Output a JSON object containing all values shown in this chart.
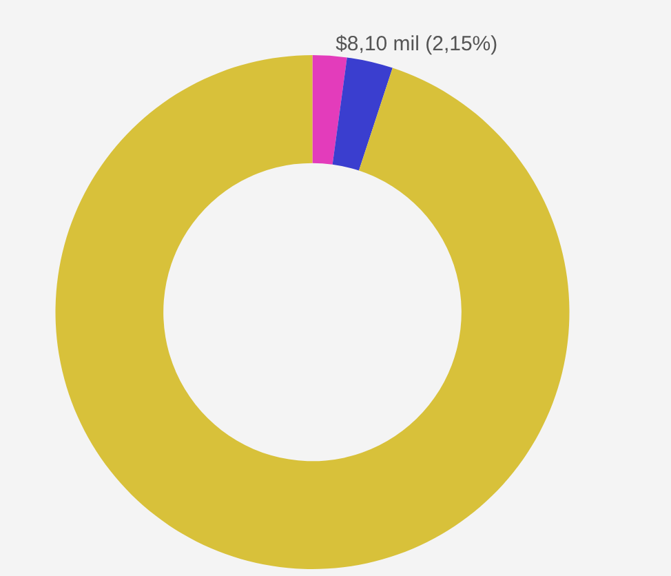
{
  "chart_data": {
    "type": "donut",
    "categories": [
      null,
      null,
      null
    ],
    "values": [
      2.15,
      2.9,
      94.95
    ],
    "colors": [
      "#e33cbb",
      "#3a3ecf",
      "#d8c13a"
    ],
    "value_labels": [
      "$8,10 mil (2,15%)",
      null,
      null
    ],
    "legend": false
  }
}
